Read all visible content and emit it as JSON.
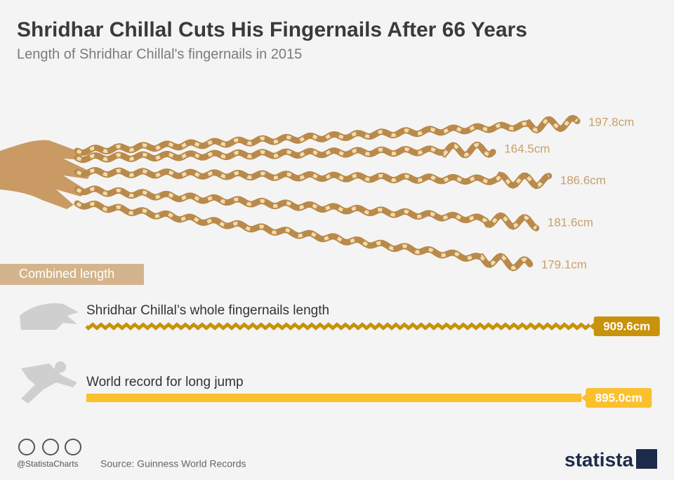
{
  "chart_data": [
    {
      "type": "nails",
      "title": "Shridhar Chillal Cuts His Fingernails After 66 Years",
      "subtitle": "Length of Shridhar Chillal's fingernails in 2015",
      "values": [
        197.8,
        164.5,
        186.6,
        181.6,
        179.1
      ],
      "value_labels": [
        "197.8cm",
        "164.5cm",
        "186.6cm",
        "181.6cm",
        "179.1cm"
      ],
      "color": "#b98a4b"
    },
    {
      "type": "bar",
      "title": "Combined length",
      "categories": [
        "Shridhar Chillal’s whole fingernails length",
        "World record for long jump"
      ],
      "values": [
        909.6,
        895.0
      ],
      "value_labels": [
        "909.6cm",
        "895.0cm"
      ],
      "colors": [
        "#c8920a",
        "#fbc02d"
      ]
    }
  ],
  "footer": {
    "handle": "@StatistaCharts",
    "source": "Source: Guinness World Records",
    "brand": "statista"
  }
}
